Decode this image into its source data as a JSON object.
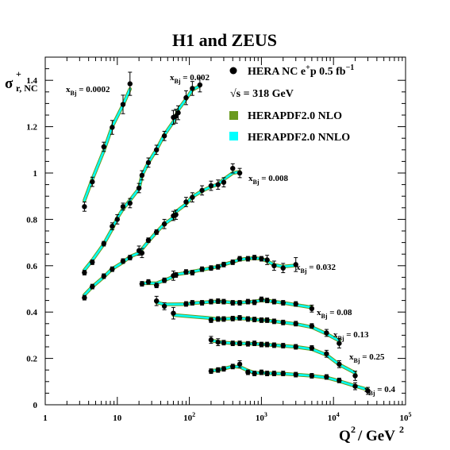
{
  "chart_data": {
    "type": "scatter",
    "title": "H1 and ZEUS",
    "ylabel": {
      "base": "σ",
      "sup": "+",
      "sub": "r, NC"
    },
    "xlabel": {
      "base": "Q",
      "sup": "2",
      "mid": "/ GeV",
      "sup2": "2"
    },
    "x_scale": "log",
    "xlim": [
      1,
      100000
    ],
    "ylim": [
      0,
      1.5
    ],
    "y_ticks": [
      "0",
      "0.2",
      "0.4",
      "0.6",
      "0.8",
      "1",
      "1.2",
      "1.4"
    ],
    "x_ticks": [
      {
        "value": 1,
        "base": "1",
        "exp": ""
      },
      {
        "value": 10,
        "base": "10",
        "exp": ""
      },
      {
        "value": 100,
        "base": "10",
        "exp": "2"
      },
      {
        "value": 1000,
        "base": "10",
        "exp": "3"
      },
      {
        "value": 10000,
        "base": "10",
        "exp": "4"
      },
      {
        "value": 100000,
        "base": "10",
        "exp": "5"
      }
    ],
    "legend": {
      "placement": "top-right",
      "items": [
        {
          "kind": "marker",
          "text": "HERA NC e",
          "sup": "+",
          "rest": "p 0.5 fb",
          "sup2": "−1"
        },
        {
          "kind": "text",
          "text": "√s = 318 GeV"
        },
        {
          "kind": "band",
          "text": "HERAPDF2.0 NLO",
          "color": "#6a9a1f"
        },
        {
          "kind": "band",
          "text": "HERAPDF2.0 NNLO",
          "color": "#00ffff"
        }
      ]
    },
    "series": [
      {
        "name": "x_Bj = 0.0002",
        "label": "0.0002",
        "x": [
          3.5,
          4.5,
          6.5,
          8.5,
          12,
          15
        ],
        "y": [
          0.855,
          0.962,
          1.113,
          1.197,
          1.296,
          1.385
        ],
        "err": [
          0.02,
          0.02,
          0.02,
          0.03,
          0.04,
          0.05
        ]
      },
      {
        "name": "x_Bj = 0.002",
        "label": "0.002",
        "x": [
          3.5,
          4.5,
          6.5,
          8.5,
          10,
          12,
          15,
          20,
          22,
          27,
          35,
          45,
          60,
          65,
          70,
          90,
          110,
          140
        ],
        "y": [
          0.57,
          0.615,
          0.695,
          0.77,
          0.8,
          0.855,
          0.87,
          0.935,
          0.99,
          1.045,
          1.1,
          1.16,
          1.24,
          1.245,
          1.26,
          1.325,
          1.365,
          1.38
        ],
        "err": [
          0.01,
          0.01,
          0.01,
          0.015,
          0.02,
          0.015,
          0.02,
          0.02,
          0.02,
          0.02,
          0.02,
          0.02,
          0.03,
          0.03,
          0.03,
          0.03,
          0.03,
          0.03
        ]
      },
      {
        "name": "x_Bj = 0.008",
        "label": "0.008",
        "x": [
          3.5,
          4.5,
          6.5,
          8.5,
          12,
          15,
          20,
          22,
          27,
          35,
          45,
          60,
          65,
          90,
          110,
          150,
          200,
          250,
          300,
          400,
          500
        ],
        "y": [
          0.462,
          0.51,
          0.555,
          0.585,
          0.62,
          0.635,
          0.665,
          0.655,
          0.71,
          0.745,
          0.78,
          0.815,
          0.82,
          0.875,
          0.895,
          0.925,
          0.945,
          0.95,
          0.96,
          1.02,
          1.0
        ],
        "err": [
          0.01,
          0.01,
          0.01,
          0.01,
          0.01,
          0.01,
          0.02,
          0.02,
          0.01,
          0.01,
          0.02,
          0.02,
          0.02,
          0.02,
          0.02,
          0.02,
          0.02,
          0.02,
          0.02,
          0.02,
          0.02
        ]
      },
      {
        "name": "x_Bj = 0.032",
        "label": "0.032",
        "x": [
          22,
          27,
          35,
          45,
          60,
          65,
          90,
          110,
          150,
          200,
          250,
          300,
          400,
          500,
          650,
          800,
          1000,
          1200,
          1500,
          2000,
          3000
        ],
        "y": [
          0.522,
          0.53,
          0.515,
          0.537,
          0.557,
          0.56,
          0.573,
          0.57,
          0.585,
          0.59,
          0.595,
          0.605,
          0.615,
          0.63,
          0.63,
          0.635,
          0.63,
          0.625,
          0.6,
          0.59,
          0.605
        ],
        "err": [
          0.01,
          0.01,
          0.01,
          0.01,
          0.02,
          0.01,
          0.01,
          0.01,
          0.01,
          0.01,
          0.01,
          0.01,
          0.01,
          0.01,
          0.01,
          0.01,
          0.01,
          0.02,
          0.02,
          0.02,
          0.03
        ]
      },
      {
        "name": "x_Bj = 0.08",
        "label": "0.08",
        "x": [
          35,
          45,
          90,
          110,
          150,
          200,
          250,
          300,
          400,
          500,
          650,
          800,
          1000,
          1200,
          1500,
          2000,
          3000,
          5000
        ],
        "y": [
          0.448,
          0.425,
          0.435,
          0.44,
          0.44,
          0.445,
          0.447,
          0.445,
          0.44,
          0.44,
          0.445,
          0.442,
          0.455,
          0.45,
          0.445,
          0.44,
          0.435,
          0.415
        ],
        "err": [
          0.02,
          0.015,
          0.01,
          0.01,
          0.01,
          0.01,
          0.01,
          0.01,
          0.01,
          0.01,
          0.01,
          0.01,
          0.01,
          0.01,
          0.01,
          0.01,
          0.01,
          0.015
        ]
      },
      {
        "name": "x_Bj = 0.13",
        "label": "0.13",
        "x": [
          60,
          200,
          250,
          300,
          400,
          500,
          650,
          800,
          1000,
          1200,
          1500,
          2000,
          3000,
          5000,
          8000,
          12000
        ],
        "y": [
          0.395,
          0.365,
          0.37,
          0.37,
          0.372,
          0.375,
          0.37,
          0.368,
          0.365,
          0.365,
          0.36,
          0.355,
          0.35,
          0.34,
          0.31,
          0.265
        ],
        "err": [
          0.025,
          0.01,
          0.01,
          0.01,
          0.01,
          0.01,
          0.01,
          0.01,
          0.01,
          0.01,
          0.01,
          0.01,
          0.01,
          0.01,
          0.015,
          0.02
        ]
      },
      {
        "name": "x_Bj = 0.25",
        "label": "0.25",
        "x": [
          200,
          250,
          300,
          400,
          500,
          650,
          800,
          1000,
          1200,
          1500,
          2000,
          3000,
          5000,
          8000,
          12000,
          20000
        ],
        "y": [
          0.28,
          0.27,
          0.268,
          0.265,
          0.265,
          0.263,
          0.265,
          0.26,
          0.26,
          0.257,
          0.255,
          0.25,
          0.245,
          0.22,
          0.175,
          0.125
        ],
        "err": [
          0.015,
          0.015,
          0.01,
          0.01,
          0.01,
          0.01,
          0.01,
          0.01,
          0.01,
          0.01,
          0.01,
          0.01,
          0.01,
          0.015,
          0.015,
          0.02
        ]
      },
      {
        "name": "x_Bj = 0.4",
        "label": "0.4",
        "x": [
          200,
          250,
          300,
          400,
          500,
          650,
          800,
          1000,
          1200,
          1500,
          2000,
          3000,
          5000,
          8000,
          12000,
          20000,
          30000
        ],
        "y": [
          0.145,
          0.15,
          0.155,
          0.165,
          0.175,
          0.14,
          0.135,
          0.14,
          0.135,
          0.135,
          0.135,
          0.13,
          0.125,
          0.12,
          0.105,
          0.08,
          0.06
        ],
        "err": [
          0.01,
          0.01,
          0.01,
          0.01,
          0.015,
          0.01,
          0.01,
          0.01,
          0.01,
          0.01,
          0.01,
          0.01,
          0.01,
          0.01,
          0.01,
          0.015,
          0.015
        ]
      }
    ]
  }
}
